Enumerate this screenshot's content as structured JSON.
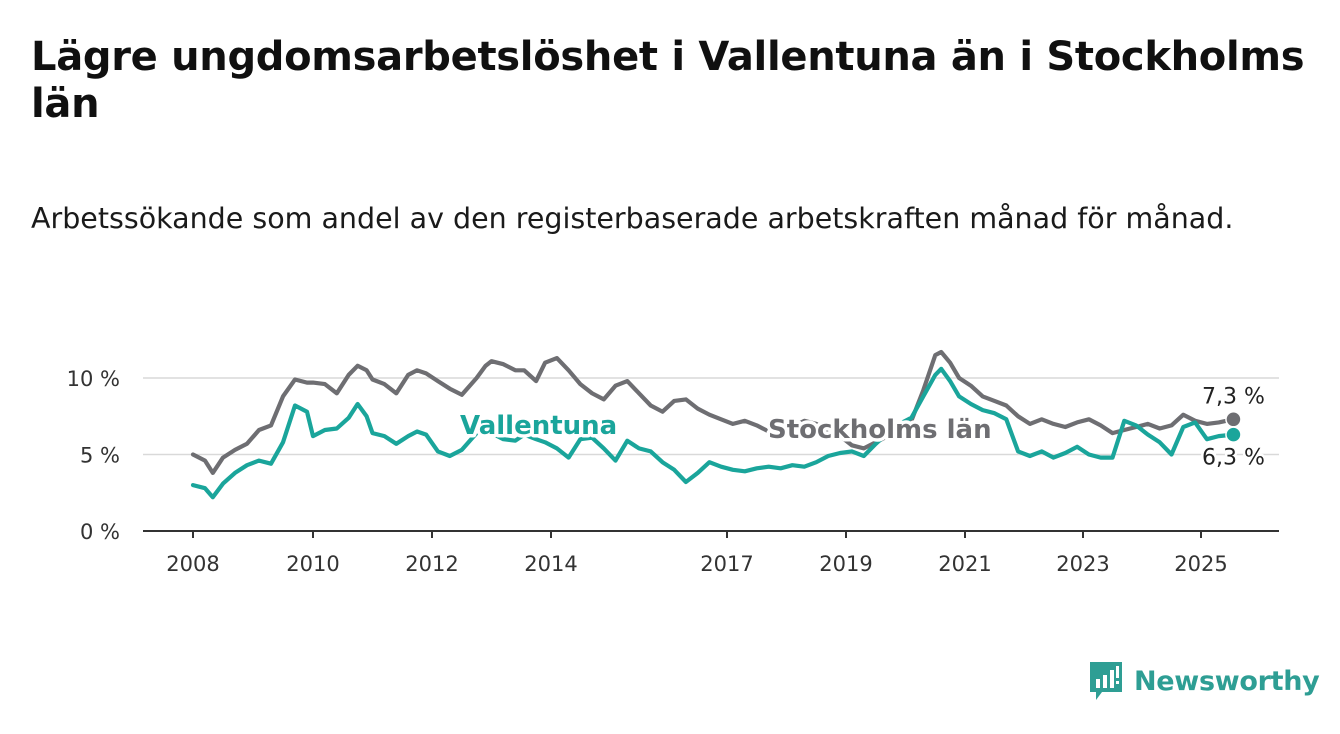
{
  "title": "Lägre ungdomsarbetslöshet i Vallentuna än i Stockholms län",
  "subtitle": "Arbetssökande som andel av den registerbaserade arbetskraften månad för månad.",
  "brand": {
    "name": "Newsworthy",
    "icon": "bar-chart-speech-bubble-icon",
    "color": "#2e9e94"
  },
  "chart_data": {
    "type": "line",
    "grid": true,
    "x_axis": {
      "ticks": [
        "2008",
        "2010",
        "2012",
        "2014",
        "2017",
        "2019",
        "2021",
        "2023",
        "2025"
      ],
      "range": [
        2008.0,
        2025.9
      ]
    },
    "y_axis": {
      "ticks": [
        "0 %",
        "5 %",
        "10 %"
      ],
      "tick_values": [
        0,
        5,
        10
      ],
      "range": [
        0,
        12
      ]
    },
    "series": [
      {
        "name": "Stockholms län",
        "color": "#6e6e72",
        "end_label": "7,3 %",
        "x": [
          2008.0,
          2008.2,
          2008.33,
          2008.5,
          2008.7,
          2008.9,
          2009.1,
          2009.3,
          2009.5,
          2009.7,
          2009.9,
          2010.0,
          2010.2,
          2010.4,
          2010.6,
          2010.75,
          2010.9,
          2011.0,
          2011.2,
          2011.4,
          2011.6,
          2011.75,
          2011.9,
          2012.1,
          2012.3,
          2012.5,
          2012.75,
          2012.9,
          2013.0,
          2013.2,
          2013.4,
          2013.55,
          2013.75,
          2013.9,
          2014.1,
          2014.3,
          2014.5,
          2014.7,
          2014.9,
          2015.1,
          2015.3,
          2015.5,
          2015.7,
          2015.9,
          2016.1,
          2016.3,
          2016.5,
          2016.7,
          2016.9,
          2017.1,
          2017.3,
          2017.5,
          2017.7,
          2017.9,
          2018.1,
          2018.3,
          2018.5,
          2018.7,
          2018.9,
          2019.1,
          2019.3,
          2019.5,
          2019.7,
          2019.9,
          2020.1,
          2020.3,
          2020.5,
          2020.6,
          2020.75,
          2020.9,
          2021.1,
          2021.3,
          2021.5,
          2021.7,
          2021.9,
          2022.1,
          2022.3,
          2022.5,
          2022.7,
          2022.9,
          2023.1,
          2023.3,
          2023.5,
          2023.7,
          2023.9,
          2024.1,
          2024.3,
          2024.5,
          2024.7,
          2024.9,
          2025.1,
          2025.3,
          2025.55
        ],
        "y": [
          5.0,
          4.6,
          3.8,
          4.8,
          5.3,
          5.7,
          6.6,
          6.9,
          8.8,
          9.9,
          9.7,
          9.7,
          9.6,
          9.0,
          10.2,
          10.8,
          10.5,
          9.9,
          9.6,
          9.0,
          10.2,
          10.5,
          10.3,
          9.8,
          9.3,
          8.9,
          10.0,
          10.8,
          11.1,
          10.9,
          10.5,
          10.5,
          9.8,
          11.0,
          11.3,
          10.5,
          9.6,
          9.0,
          8.6,
          9.5,
          9.8,
          9.0,
          8.2,
          7.8,
          8.5,
          8.6,
          8.0,
          7.6,
          7.3,
          7.0,
          7.2,
          6.9,
          6.5,
          6.2,
          6.8,
          7.2,
          7.0,
          6.5,
          6.2,
          5.6,
          5.4,
          5.8,
          6.2,
          6.8,
          7.2,
          9.2,
          11.5,
          11.7,
          11.0,
          10.0,
          9.5,
          8.8,
          8.5,
          8.2,
          7.5,
          7.0,
          7.3,
          7.0,
          6.8,
          7.1,
          7.3,
          6.9,
          6.4,
          6.6,
          6.8,
          7.0,
          6.7,
          6.9,
          7.6,
          7.2,
          7.0,
          7.1,
          7.3
        ]
      },
      {
        "name": "Vallentuna",
        "color": "#1aa59b",
        "end_label": "6,3 %",
        "x": [
          2008.0,
          2008.2,
          2008.33,
          2008.5,
          2008.7,
          2008.9,
          2009.1,
          2009.3,
          2009.5,
          2009.7,
          2009.9,
          2010.0,
          2010.2,
          2010.4,
          2010.6,
          2010.75,
          2010.9,
          2011.0,
          2011.2,
          2011.4,
          2011.6,
          2011.75,
          2011.9,
          2012.1,
          2012.3,
          2012.5,
          2012.75,
          2012.9,
          2013.0,
          2013.2,
          2013.4,
          2013.55,
          2013.75,
          2013.9,
          2014.1,
          2014.3,
          2014.5,
          2014.7,
          2014.9,
          2015.1,
          2015.3,
          2015.5,
          2015.7,
          2015.9,
          2016.1,
          2016.3,
          2016.5,
          2016.7,
          2016.9,
          2017.1,
          2017.3,
          2017.5,
          2017.7,
          2017.9,
          2018.1,
          2018.3,
          2018.5,
          2018.7,
          2018.9,
          2019.1,
          2019.3,
          2019.5,
          2019.7,
          2019.9,
          2020.1,
          2020.3,
          2020.5,
          2020.6,
          2020.75,
          2020.9,
          2021.1,
          2021.3,
          2021.5,
          2021.7,
          2021.9,
          2022.1,
          2022.3,
          2022.5,
          2022.7,
          2022.9,
          2023.1,
          2023.3,
          2023.5,
          2023.7,
          2023.9,
          2024.1,
          2024.3,
          2024.5,
          2024.7,
          2024.9,
          2025.1,
          2025.3,
          2025.55
        ],
        "y": [
          3.0,
          2.8,
          2.2,
          3.1,
          3.8,
          4.3,
          4.6,
          4.4,
          5.8,
          8.2,
          7.8,
          6.2,
          6.6,
          6.7,
          7.4,
          8.3,
          7.5,
          6.4,
          6.2,
          5.7,
          6.2,
          6.5,
          6.3,
          5.2,
          4.9,
          5.3,
          6.4,
          6.7,
          6.4,
          6.0,
          5.9,
          6.3,
          6.0,
          5.8,
          5.4,
          4.8,
          6.0,
          6.1,
          5.4,
          4.6,
          5.9,
          5.4,
          5.2,
          4.5,
          4.0,
          3.2,
          3.8,
          4.5,
          4.2,
          4.0,
          3.9,
          4.1,
          4.2,
          4.1,
          4.3,
          4.2,
          4.5,
          4.9,
          5.1,
          5.2,
          4.9,
          5.7,
          6.4,
          7.0,
          7.4,
          8.8,
          10.2,
          10.6,
          9.8,
          8.8,
          8.3,
          7.9,
          7.7,
          7.3,
          5.2,
          4.9,
          5.2,
          4.8,
          5.1,
          5.5,
          5.0,
          4.8,
          4.8,
          7.2,
          6.9,
          6.3,
          5.8,
          5.0,
          6.8,
          7.1,
          6.0,
          6.2,
          6.3
        ]
      }
    ]
  }
}
